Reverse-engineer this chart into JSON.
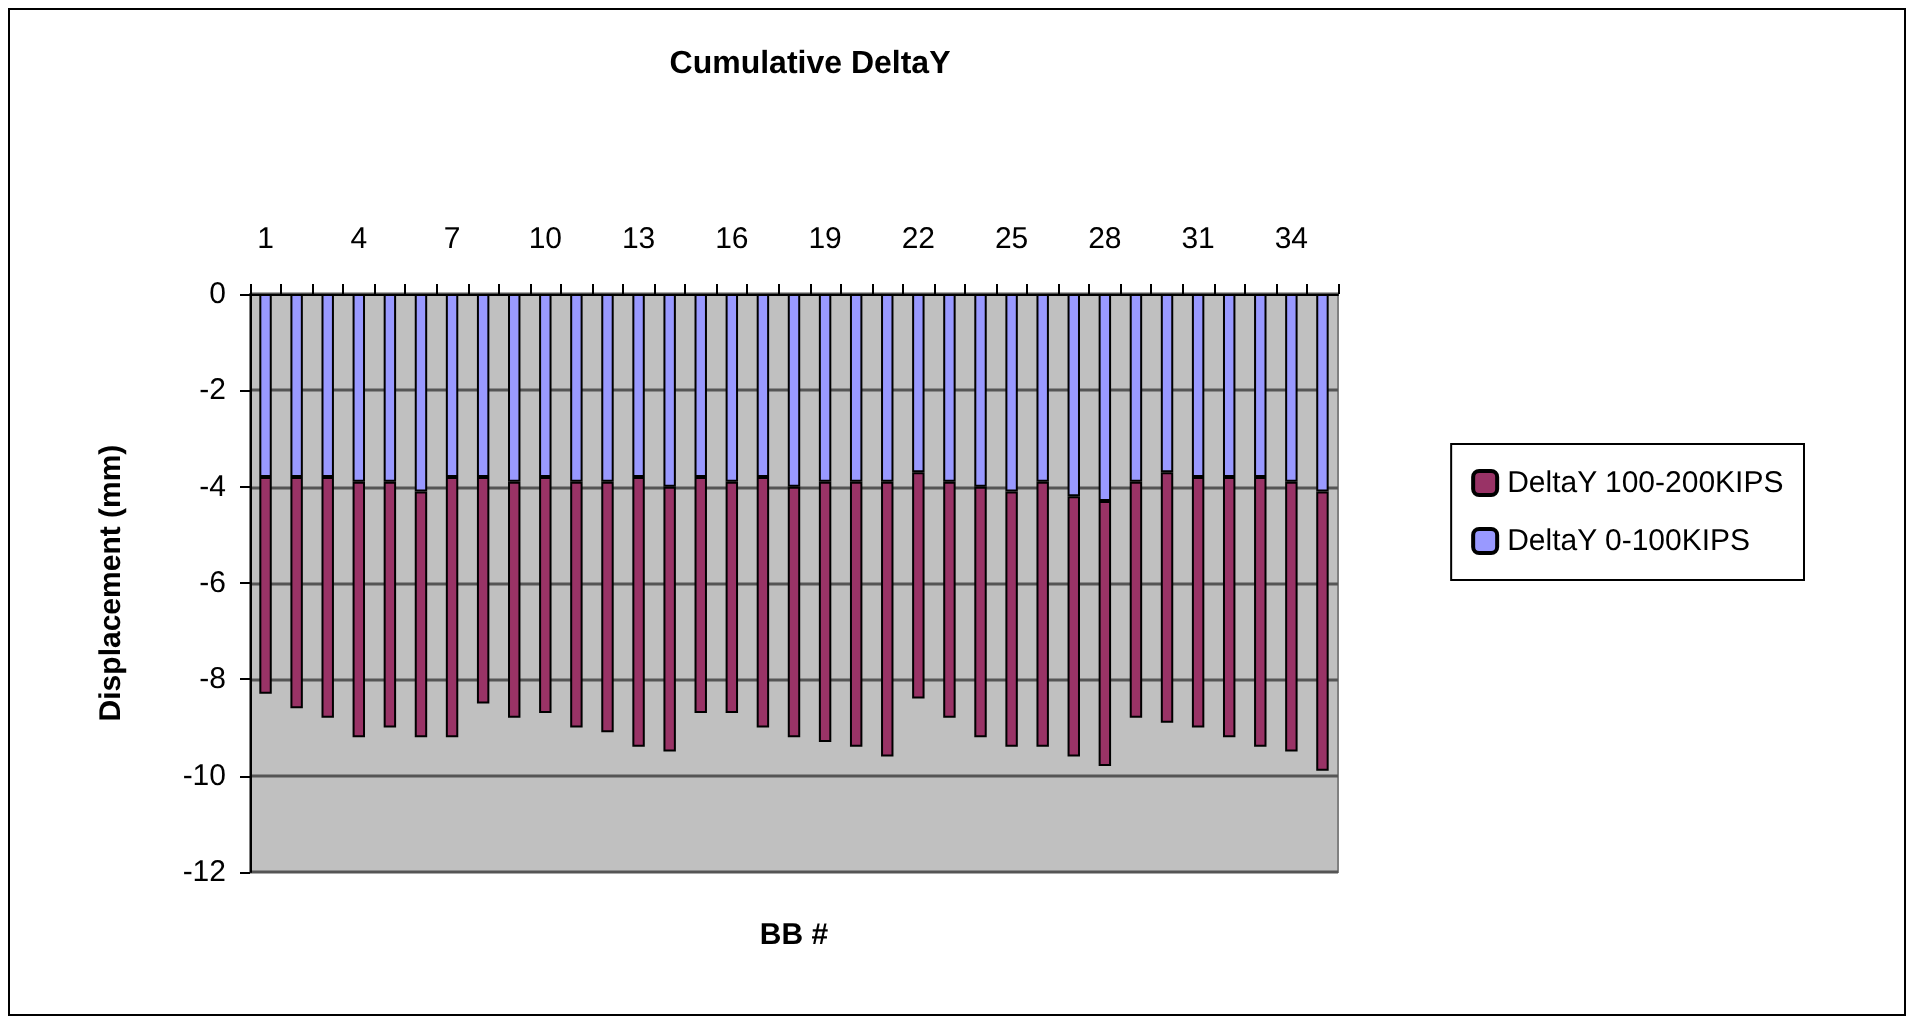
{
  "chart_data": {
    "type": "bar",
    "title": "Cumulative DeltaY",
    "xlabel": "BB #",
    "ylabel": "Displacement (mm)",
    "categories": [
      "1",
      null,
      null,
      "4",
      null,
      null,
      "7",
      null,
      null,
      "10",
      null,
      null,
      "13",
      null,
      null,
      "16",
      null,
      null,
      "19",
      null,
      null,
      "22",
      null,
      null,
      "25",
      null,
      null,
      "28",
      null,
      null,
      "31",
      null,
      null,
      "34",
      null
    ],
    "series": [
      {
        "name": "DeltaY 0-100KIPS",
        "color": "#9999ff",
        "values": [
          -3.8,
          -3.8,
          -3.8,
          -3.9,
          -3.9,
          -4.1,
          -3.8,
          -3.8,
          -3.9,
          -3.8,
          -3.9,
          -3.9,
          -3.8,
          -4.0,
          -3.8,
          -3.9,
          -3.8,
          -4.0,
          -3.9,
          -3.9,
          -3.9,
          -3.7,
          -3.9,
          -4.0,
          -4.1,
          -3.9,
          -4.2,
          -4.3,
          -3.9,
          -3.7,
          -3.8,
          -3.8,
          -3.8,
          -3.9,
          -4.1
        ]
      },
      {
        "name": "DeltaY 100-200KIPS",
        "color": "#993366",
        "values": [
          -4.5,
          -4.8,
          -5.0,
          -5.3,
          -5.1,
          -5.1,
          -5.4,
          -4.7,
          -4.9,
          -4.9,
          -5.1,
          -5.2,
          -5.6,
          -5.5,
          -4.9,
          -4.8,
          -5.2,
          -5.2,
          -5.4,
          -5.5,
          -5.7,
          -4.7,
          -4.9,
          -5.2,
          -5.3,
          -5.5,
          -5.4,
          -5.5,
          -4.9,
          -5.2,
          -5.2,
          -5.4,
          -5.6,
          -5.6,
          -5.8
        ]
      }
    ],
    "stacked": true,
    "ylim": [
      -12,
      0
    ],
    "yticks": [
      -12,
      -10,
      -8,
      -6,
      -4,
      -2,
      0
    ],
    "grid": "y",
    "legend": "right"
  }
}
